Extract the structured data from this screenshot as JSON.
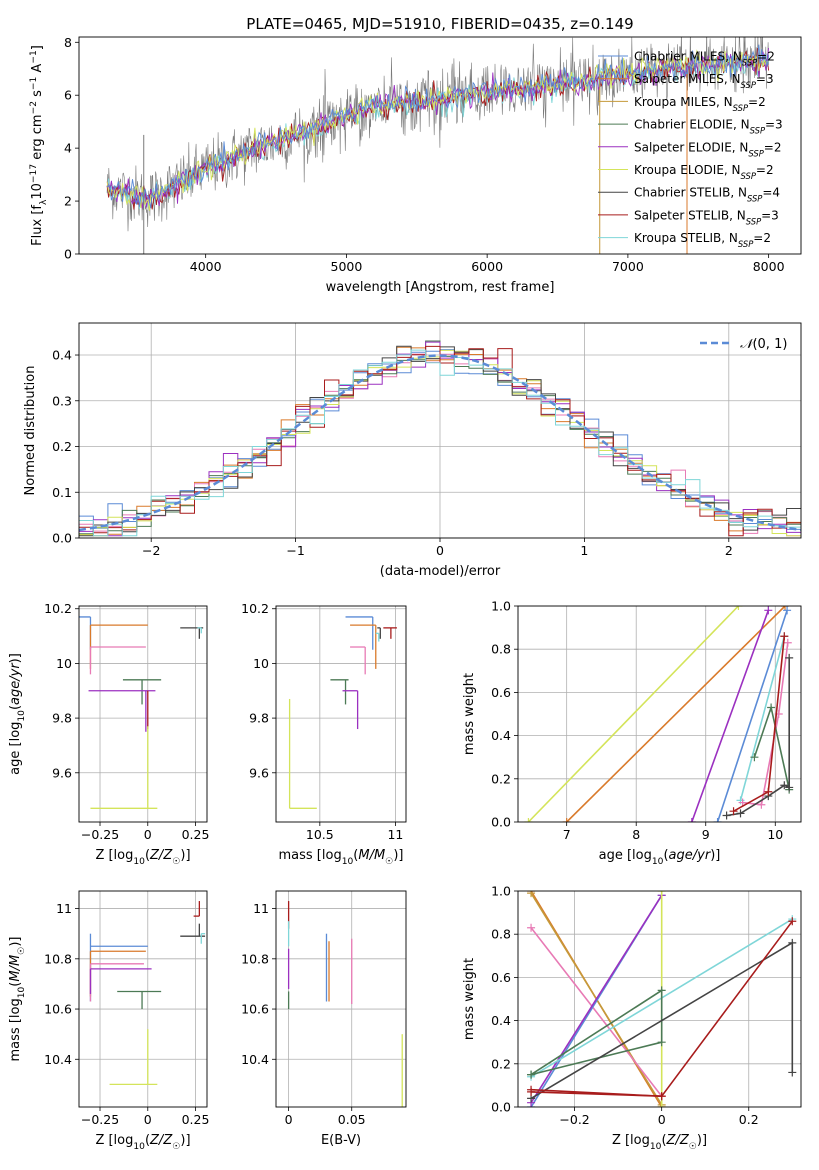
{
  "title": "PLATE=0465, MJD=51910, FIBERID=0435, z=0.149",
  "colors": {
    "chabrier_miles": "#5b8bd6",
    "salpeter_miles": "#d97a2b",
    "kroupa_miles": "#c59a3a",
    "chabrier_elodie": "#4c7a55",
    "salpeter_elodie": "#9b30c0",
    "kroupa_elodie": "#d4e45a",
    "chabrier_stelib": "#444444",
    "salpeter_stelib": "#a81c1c",
    "kroupa_stelib": "#7fd6d8",
    "pink": "#e87ab5",
    "data": "#7a7a7a"
  },
  "chart_data": [
    {
      "id": "spectrum",
      "type": "line",
      "xlabel": "wavelength [Angstrom, rest frame]",
      "ylabel": "Flux [f_λ 10^-17 erg cm^-2 s^-1 A^-1]",
      "xlim": [
        3100,
        8230
      ],
      "ylim": [
        0,
        8.2
      ],
      "xticks": [
        4000,
        5000,
        6000,
        7000,
        8000
      ],
      "yticks": [
        0,
        2,
        4,
        6,
        8
      ],
      "legend": "top-right",
      "continuum": [
        [
          3300,
          2.5
        ],
        [
          3600,
          2.1
        ],
        [
          3900,
          2.9
        ],
        [
          4000,
          3.2
        ],
        [
          4300,
          3.9
        ],
        [
          4800,
          4.8
        ],
        [
          5200,
          5.6
        ],
        [
          5600,
          5.8
        ],
        [
          6000,
          6.1
        ],
        [
          6500,
          6.4
        ],
        [
          7000,
          6.8
        ],
        [
          7500,
          7.1
        ],
        [
          8000,
          7.3
        ]
      ],
      "legend_entries": [
        {
          "key": "chabrier_miles",
          "label": "Chabrier MILES, N_SSP=2"
        },
        {
          "key": "salpeter_miles",
          "label": "Salpeter MILES, N_SSP=3"
        },
        {
          "key": "kroupa_miles",
          "label": "Kroupa MILES, N_SSP=2"
        },
        {
          "key": "chabrier_elodie",
          "label": "Chabrier ELODIE, N_SSP=3"
        },
        {
          "key": "salpeter_elodie",
          "label": "Salpeter ELODIE, N_SSP=2"
        },
        {
          "key": "kroupa_elodie",
          "label": "Kroupa ELODIE, N_SSP=2"
        },
        {
          "key": "chabrier_stelib",
          "label": "Chabrier STELIB, N_SSP=4"
        },
        {
          "key": "salpeter_stelib",
          "label": "Salpeter STELIB, N_SSP=3"
        },
        {
          "key": "kroupa_stelib",
          "label": "Kroupa STELIB, N_SSP=2"
        }
      ],
      "vertical_spikes": [
        3560,
        6800,
        7420
      ]
    },
    {
      "id": "residuals",
      "type": "line",
      "xlabel": "(data-model)/error",
      "ylabel": "Normed distribution",
      "xlim": [
        -2.5,
        2.5
      ],
      "ylim": [
        0,
        0.47
      ],
      "xticks": [
        -2,
        -1,
        0,
        1,
        2
      ],
      "yticks": [
        0.0,
        0.1,
        0.2,
        0.3,
        0.4
      ],
      "legend": "top-right",
      "legend_label": "N(0,1)",
      "bin_width": 0.1
    },
    {
      "id": "age_vs_Z",
      "type": "scatter",
      "xlabel": "Z [log10(Z/Z_sun)]",
      "ylabel": "age [log10(age/yr)]",
      "xlim": [
        -0.36,
        0.31
      ],
      "ylim": [
        9.42,
        10.21
      ],
      "xticks": [
        -0.25,
        0.0,
        0.25
      ],
      "yticks": [
        9.6,
        9.8,
        10.0,
        10.2
      ],
      "points": [
        {
          "key": "chabrier_miles",
          "x": -0.3,
          "y": 10.17,
          "xerr": [
            0.3,
            0.0
          ],
          "yerr": [
            0.12,
            0.0
          ]
        },
        {
          "key": "salpeter_miles",
          "x": -0.3,
          "y": 10.14,
          "xerr": [
            0.0,
            0.3
          ],
          "yerr": [
            0.16,
            0.0
          ]
        },
        {
          "key": "chabrier_stelib",
          "x": 0.27,
          "y": 10.13,
          "xerr": [
            0.1,
            0.02
          ],
          "yerr": [
            0.04,
            0.0
          ]
        },
        {
          "key": "kroupa_stelib",
          "x": 0.28,
          "y": 10.13,
          "xerr": [
            0.02,
            0.0
          ],
          "yerr": [
            0.02,
            0.0
          ]
        },
        {
          "key": "pink",
          "x": -0.3,
          "y": 10.06,
          "xerr": [
            0.0,
            0.29
          ],
          "yerr": [
            0.1,
            0.0
          ]
        },
        {
          "key": "chabrier_elodie",
          "x": -0.03,
          "y": 9.94,
          "xerr": [
            0.1,
            0.1
          ],
          "yerr": [
            0.09,
            0.0
          ]
        },
        {
          "key": "salpeter_elodie",
          "x": -0.01,
          "y": 9.9,
          "xerr": [
            0.3,
            0.05
          ],
          "yerr": [
            0.15,
            0.0
          ]
        },
        {
          "key": "salpeter_stelib",
          "x": 0.0,
          "y": 9.9,
          "xerr": [
            0.0,
            0.0
          ],
          "yerr": [
            0.14,
            0.0
          ]
        },
        {
          "key": "kroupa_elodie",
          "x": 0.0,
          "y": 9.47,
          "xerr": [
            0.3,
            0.05
          ],
          "yerr": [
            0.0,
            0.3
          ]
        }
      ]
    },
    {
      "id": "age_vs_mass",
      "type": "scatter",
      "xlabel": "mass [log10(M/M_sun)]",
      "ylabel": "",
      "xlim": [
        10.21,
        11.07
      ],
      "ylim": [
        9.42,
        10.21
      ],
      "xticks": [
        10.5,
        11.0
      ],
      "yticks": [
        9.6,
        9.8,
        10.0,
        10.2
      ],
      "points": [
        {
          "key": "chabrier_miles",
          "x": 10.85,
          "y": 10.17,
          "xerr": [
            0.18,
            0.0
          ],
          "yerr": [
            0.12,
            0.0
          ]
        },
        {
          "key": "salpeter_miles",
          "x": 10.87,
          "y": 10.14,
          "xerr": [
            0.17,
            0.0
          ],
          "yerr": [
            0.16,
            0.0
          ]
        },
        {
          "key": "salpeter_stelib",
          "x": 10.97,
          "y": 10.13,
          "xerr": [
            0.05,
            0.04
          ],
          "yerr": [
            0.04,
            0.0
          ]
        },
        {
          "key": "chabrier_stelib",
          "x": 10.9,
          "y": 10.13,
          "xerr": [
            0.02,
            0.0
          ],
          "yerr": [
            0.04,
            0.0
          ]
        },
        {
          "key": "kroupa_stelib",
          "x": 10.89,
          "y": 10.11,
          "xerr": [
            0.02,
            0.0
          ],
          "yerr": [
            0.03,
            0.0
          ]
        },
        {
          "key": "pink",
          "x": 10.8,
          "y": 10.06,
          "xerr": [
            0.1,
            0.0
          ],
          "yerr": [
            0.1,
            0.0
          ]
        },
        {
          "key": "chabrier_elodie",
          "x": 10.67,
          "y": 9.94,
          "xerr": [
            0.1,
            0.02
          ],
          "yerr": [
            0.09,
            0.0
          ]
        },
        {
          "key": "salpeter_elodie",
          "x": 10.75,
          "y": 9.9,
          "xerr": [
            0.1,
            0.0
          ],
          "yerr": [
            0.14,
            0.0
          ]
        },
        {
          "key": "kroupa_elodie",
          "x": 10.3,
          "y": 9.47,
          "xerr": [
            0.0,
            0.18
          ],
          "yerr": [
            0.0,
            0.4
          ]
        }
      ]
    },
    {
      "id": "mw_vs_age",
      "type": "line",
      "xlabel": "age [log10(age/yr)]",
      "ylabel": "mass weight",
      "xlim": [
        6.3,
        10.37
      ],
      "ylim": [
        0,
        1.0
      ],
      "xticks": [
        7,
        8,
        9,
        10
      ],
      "yticks": [
        0.0,
        0.2,
        0.4,
        0.6,
        0.8,
        1.0
      ],
      "series": [
        {
          "key": "kroupa_elodie",
          "x": [
            6.45,
            9.47
          ],
          "y": [
            0.0,
            1.0
          ]
        },
        {
          "key": "salpeter_miles",
          "x": [
            7.0,
            10.14
          ],
          "y": [
            0.0,
            1.0
          ]
        },
        {
          "key": "salpeter_elodie",
          "x": [
            8.8,
            9.9
          ],
          "y": [
            0.0,
            0.98
          ]
        },
        {
          "key": "chabrier_miles",
          "x": [
            9.17,
            10.17
          ],
          "y": [
            0.0,
            0.98
          ]
        },
        {
          "key": "kroupa_stelib",
          "x": [
            9.5,
            10.13
          ],
          "y": [
            0.1,
            0.86
          ]
        },
        {
          "key": "pink",
          "x": [
            9.53,
            9.8,
            10.05,
            10.18
          ],
          "y": [
            0.09,
            0.08,
            0.5,
            0.83
          ]
        },
        {
          "key": "chabrier_elodie",
          "x": [
            9.7,
            9.94,
            10.2
          ],
          "y": [
            0.3,
            0.53,
            0.15
          ]
        },
        {
          "key": "chabrier_stelib",
          "x": [
            9.3,
            9.5,
            9.9,
            10.13,
            10.2,
            10.2
          ],
          "y": [
            0.03,
            0.04,
            0.12,
            0.17,
            0.16,
            0.76
          ]
        },
        {
          "key": "salpeter_stelib",
          "x": [
            9.4,
            9.9,
            10.13
          ],
          "y": [
            0.05,
            0.14,
            0.86
          ]
        }
      ]
    },
    {
      "id": "mass_vs_Z",
      "type": "scatter",
      "xlabel": "Z [log10(Z/Z_sun)]",
      "ylabel": "mass [log10(M/M_sun)]",
      "xlim": [
        -0.36,
        0.31
      ],
      "ylim": [
        10.21,
        11.07
      ],
      "xticks": [
        -0.25,
        0.0,
        0.25
      ],
      "yticks": [
        10.4,
        10.6,
        10.8,
        11.0
      ],
      "points": [
        {
          "key": "chabrier_miles",
          "x": -0.3,
          "y": 10.85,
          "xerr": [
            0.0,
            0.3
          ],
          "yerr": [
            0.22,
            0.05
          ]
        },
        {
          "key": "salpeter_miles",
          "x": -0.3,
          "y": 10.83,
          "xerr": [
            0.0,
            0.29
          ],
          "yerr": [
            0.18,
            0.0
          ]
        },
        {
          "key": "pink",
          "x": -0.3,
          "y": 10.78,
          "xerr": [
            0.0,
            0.28
          ],
          "yerr": [
            0.15,
            0.0
          ]
        },
        {
          "key": "salpeter_elodie",
          "x": -0.3,
          "y": 10.76,
          "xerr": [
            0.0,
            0.32
          ],
          "yerr": [
            0.1,
            0.0
          ]
        },
        {
          "key": "chabrier_elodie",
          "x": -0.03,
          "y": 10.67,
          "xerr": [
            0.13,
            0.1
          ],
          "yerr": [
            0.07,
            0.0
          ]
        },
        {
          "key": "salpeter_stelib",
          "x": 0.27,
          "y": 10.97,
          "xerr": [
            0.03,
            0.0
          ],
          "yerr": [
            0.0,
            0.06
          ]
        },
        {
          "key": "chabrier_stelib",
          "x": 0.27,
          "y": 10.89,
          "xerr": [
            0.1,
            0.03
          ],
          "yerr": [
            0.0,
            0.05
          ]
        },
        {
          "key": "kroupa_stelib",
          "x": 0.28,
          "y": 10.9,
          "xerr": [
            0.0,
            0.02
          ],
          "yerr": [
            0.04,
            0.0
          ]
        },
        {
          "key": "kroupa_elodie",
          "x": 0.0,
          "y": 10.3,
          "xerr": [
            0.2,
            0.05
          ],
          "yerr": [
            0.0,
            0.22
          ]
        }
      ]
    },
    {
      "id": "mass_vs_ebv",
      "type": "scatter",
      "xlabel": "E(B-V)",
      "ylabel": "",
      "xlim": [
        -0.01,
        0.093
      ],
      "ylim": [
        10.21,
        11.07
      ],
      "xticks": [
        0.0,
        0.05
      ],
      "yticks": [
        10.4,
        10.6,
        10.8,
        11.0
      ],
      "points": [
        {
          "key": "salpeter_stelib",
          "x": 0.0,
          "y": 10.97,
          "xerr": [
            0,
            0
          ],
          "yerr": [
            0.05,
            0.06
          ]
        },
        {
          "key": "kroupa_stelib",
          "x": 0.0,
          "y": 10.9,
          "xerr": [
            0,
            0
          ],
          "yerr": [
            0.05,
            0.05
          ]
        },
        {
          "key": "salpeter_elodie",
          "x": 0.0,
          "y": 10.76,
          "xerr": [
            0,
            0
          ],
          "yerr": [
            0.08,
            0.08
          ]
        },
        {
          "key": "chabrier_elodie",
          "x": 0.0,
          "y": 10.67,
          "xerr": [
            0,
            0
          ],
          "yerr": [
            0.07,
            0.0
          ]
        },
        {
          "key": "chabrier_miles",
          "x": 0.03,
          "y": 10.77,
          "xerr": [
            0,
            0
          ],
          "yerr": [
            0.14,
            0.13
          ]
        },
        {
          "key": "salpeter_miles",
          "x": 0.032,
          "y": 10.75,
          "xerr": [
            0,
            0
          ],
          "yerr": [
            0.12,
            0.12
          ]
        },
        {
          "key": "pink",
          "x": 0.05,
          "y": 10.75,
          "xerr": [
            0,
            0
          ],
          "yerr": [
            0.13,
            0.13
          ]
        },
        {
          "key": "kroupa_elodie",
          "x": 0.09,
          "y": 10.35,
          "xerr": [
            0,
            0
          ],
          "yerr": [
            0.15,
            0.15
          ]
        }
      ]
    },
    {
      "id": "mw_vs_Z",
      "type": "line",
      "xlabel": "Z [log10(Z/Z_sun)]",
      "ylabel": "mass weight",
      "xlim": [
        -0.33,
        0.32
      ],
      "ylim": [
        0,
        1.0
      ],
      "xticks": [
        -0.2,
        0.0,
        0.2
      ],
      "yticks": [
        0.0,
        0.2,
        0.4,
        0.6,
        0.8,
        1.0
      ],
      "series": [
        {
          "key": "salpeter_miles",
          "x": [
            -0.3,
            0.0
          ],
          "y": [
            1.0,
            0.0
          ]
        },
        {
          "key": "kroupa_miles",
          "x": [
            -0.3,
            0.0
          ],
          "y": [
            0.99,
            0.01
          ]
        },
        {
          "key": "pink",
          "x": [
            -0.3,
            0.0
          ],
          "y": [
            0.83,
            0.05
          ]
        },
        {
          "key": "chabrier_miles",
          "x": [
            -0.3,
            0.0
          ],
          "y": [
            0.0,
            0.98
          ]
        },
        {
          "key": "salpeter_elodie",
          "x": [
            -0.3,
            0.0
          ],
          "y": [
            0.02,
            0.98
          ]
        },
        {
          "key": "kroupa_elodie",
          "x": [
            0.0,
            0.0
          ],
          "y": [
            0.0,
            1.0
          ]
        },
        {
          "key": "kroupa_stelib",
          "x": [
            -0.3,
            0.3
          ],
          "y": [
            0.14,
            0.87
          ]
        },
        {
          "key": "chabrier_elodie",
          "x": [
            -0.3,
            0.0,
            0.0,
            -0.3
          ],
          "y": [
            0.15,
            0.54,
            0.3,
            0.15
          ]
        },
        {
          "key": "chabrier_stelib",
          "x": [
            -0.3,
            0.3,
            0.3
          ],
          "y": [
            0.04,
            0.76,
            0.16
          ]
        },
        {
          "key": "salpeter_stelib",
          "x": [
            -0.3,
            0.0,
            0.3
          ],
          "y": [
            0.08,
            0.05,
            0.86
          ]
        },
        {
          "key": "salpeter_stelib",
          "x": [
            -0.3,
            0.0
          ],
          "y": [
            0.07,
            0.05
          ]
        }
      ]
    }
  ]
}
